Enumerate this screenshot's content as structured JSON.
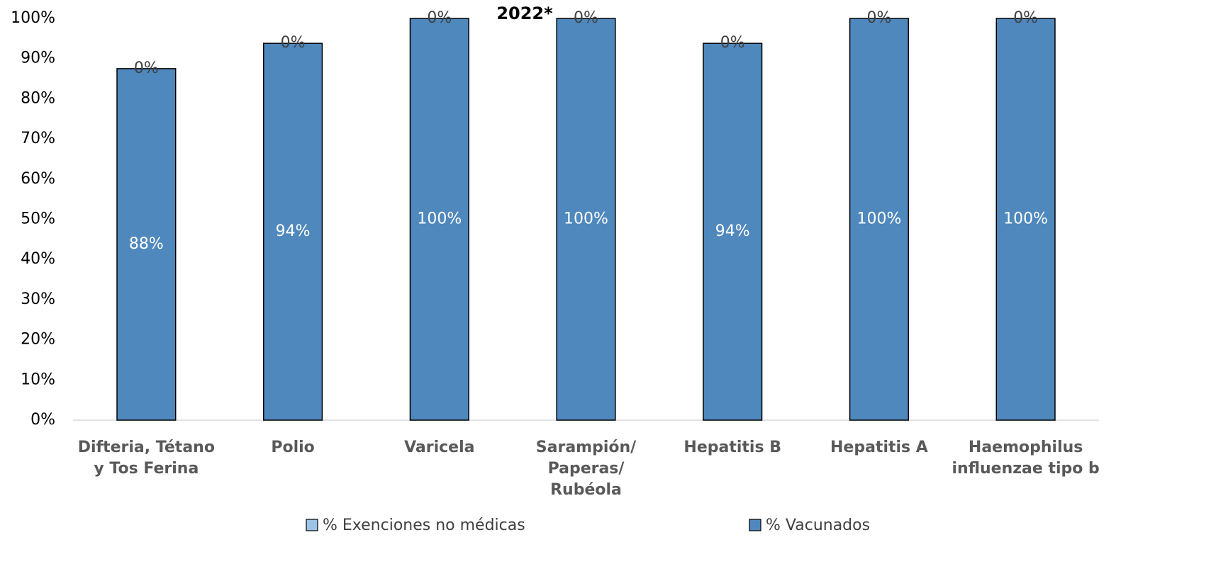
{
  "chart_data": {
    "type": "bar",
    "stacked": true,
    "title": "2022*",
    "categories": [
      "Difteria, Tétano y Tos Ferina",
      "Polio",
      "Varicela",
      "Sarampión/ Paperas/ Rubéola",
      "Hepatitis B",
      "Hepatitis A",
      "Haemophilus influenzae tipo b"
    ],
    "series": [
      {
        "name": "% Vacunados",
        "color": "#4f88bd",
        "values": [
          87.5,
          93.8,
          100,
          100,
          93.8,
          100,
          100
        ],
        "value_labels": [
          "88%",
          "94%",
          "100%",
          "100%",
          "94%",
          "100%",
          "100%"
        ]
      },
      {
        "name": "% Exenciones no médicas",
        "color": "#9dc3e6",
        "values": [
          0,
          0,
          0,
          0,
          0,
          0,
          0
        ],
        "value_labels": [
          "0%",
          "0%",
          "0%",
          "0%",
          "0%",
          "0%",
          "0%"
        ]
      }
    ],
    "ylim": [
      0,
      100
    ],
    "yticks": [
      {
        "value": 0,
        "label": "0%"
      },
      {
        "value": 10,
        "label": "10%"
      },
      {
        "value": 20,
        "label": "20%"
      },
      {
        "value": 30,
        "label": "30%"
      },
      {
        "value": 40,
        "label": "40%"
      },
      {
        "value": 50,
        "label": "50%"
      },
      {
        "value": 60,
        "label": "60%"
      },
      {
        "value": 70,
        "label": "70%"
      },
      {
        "value": 80,
        "label": "80%"
      },
      {
        "value": 90,
        "label": "90%"
      },
      {
        "value": {
          "value": 100,
          "label": "100%"
        },
        "label": "100%"
      }
    ],
    "grid": false
  }
}
